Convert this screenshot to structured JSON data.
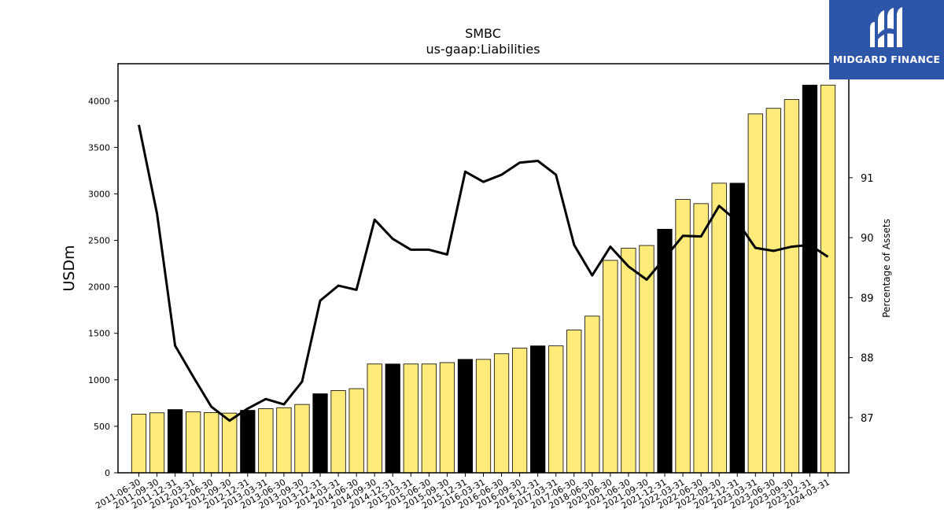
{
  "chart_data": {
    "type": "bar",
    "title": "SMBC",
    "subtitle": "us-gaap:Liabilities",
    "ylabel": "USDm",
    "y2label": "Percentage of Assets",
    "ylim": [
      0,
      4400
    ],
    "y2lim": [
      86.08,
      92.9
    ],
    "yticks": [
      0,
      500,
      1000,
      1500,
      2000,
      2500,
      3000,
      3500,
      4000
    ],
    "y2ticks": [
      87,
      88,
      89,
      90,
      91
    ],
    "categories": [
      "2011-06-30",
      "2011-09-30",
      "2011-12-31",
      "2012-03-31",
      "2012-06-30",
      "2012-09-30",
      "2012-12-31",
      "2013-03-31",
      "2013-06-30",
      "2013-09-30",
      "2013-12-31",
      "2014-03-31",
      "2014-06-30",
      "2014-09-30",
      "2014-12-31",
      "2015-03-31",
      "2015-06-30",
      "2015-09-30",
      "2015-12-31",
      "2016-03-31",
      "2016-06-30",
      "2016-09-30",
      "2016-12-31",
      "2017-03-31",
      "2017-06-30",
      "2018-06-30",
      "2020-06-30",
      "2021-06-30",
      "2021-09-30",
      "2021-12-31",
      "2022-03-31",
      "2022-06-30",
      "2022-09-30",
      "2022-12-31",
      "2023-03-31",
      "2023-06-30",
      "2023-09-30",
      "2023-12-31",
      "2024-03-31"
    ],
    "series": [
      {
        "kind": "bar",
        "axis": "left",
        "values": [
          630,
          645,
          680,
          655,
          648,
          642,
          672,
          690,
          700,
          735,
          850,
          885,
          905,
          1170,
          1170,
          1170,
          1170,
          1185,
          1220,
          1220,
          1280,
          1340,
          1365,
          1365,
          1535,
          1685,
          2285,
          2415,
          2445,
          2620,
          2940,
          2895,
          3115,
          3115,
          3860,
          3920,
          4015,
          4170,
          4170
        ],
        "highlight": [
          false,
          false,
          true,
          false,
          false,
          false,
          true,
          false,
          false,
          false,
          true,
          false,
          false,
          false,
          true,
          false,
          false,
          false,
          true,
          false,
          false,
          false,
          true,
          false,
          false,
          false,
          false,
          false,
          false,
          true,
          false,
          false,
          false,
          true,
          false,
          false,
          false,
          true,
          false
        ]
      },
      {
        "kind": "line",
        "axis": "right",
        "values": [
          91.88,
          90.4,
          88.2,
          87.68,
          87.18,
          86.95,
          87.15,
          87.31,
          87.22,
          87.6,
          88.95,
          89.2,
          89.13,
          90.3,
          89.98,
          89.8,
          89.8,
          89.72,
          91.1,
          90.93,
          91.05,
          91.25,
          91.28,
          91.05,
          89.88,
          89.37,
          89.85,
          89.52,
          89.3,
          89.66,
          90.03,
          90.02,
          90.53,
          90.27,
          89.83,
          89.78,
          89.85,
          89.88,
          89.68
        ]
      }
    ],
    "colors": {
      "bar": "#ffeb7a",
      "highlight": "#000000",
      "line": "#000000"
    }
  },
  "logo": {
    "text": "MIDGARD FINANCE"
  }
}
